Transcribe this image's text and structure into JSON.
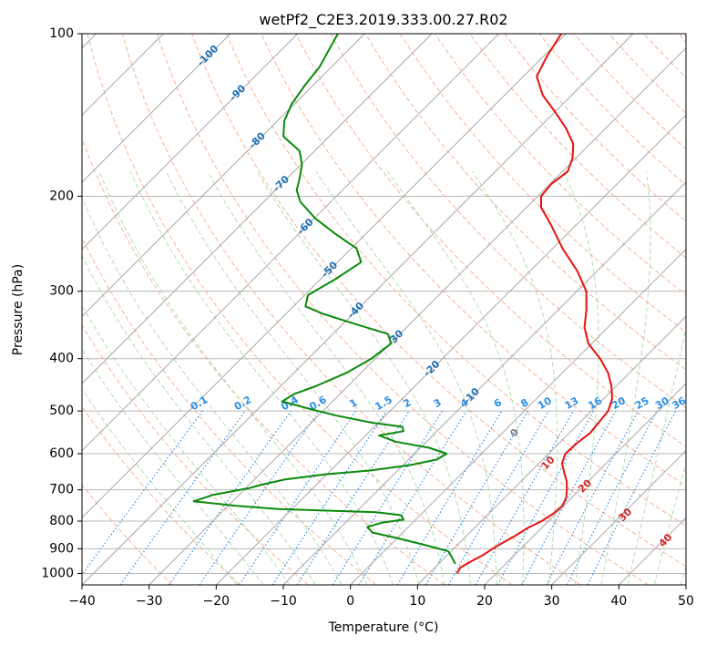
{
  "chart_data": {
    "type": "line",
    "subtype": "skew-T log-P diagram",
    "title": "wetPf2_C2E3.2019.333.00.27.R02",
    "xlabel": "Temperature (°C)",
    "ylabel": "Pressure (hPa)",
    "xlim": [
      -40,
      50
    ],
    "ylim": [
      1050,
      100
    ],
    "y_scale": "log",
    "x_ticks": [
      -40,
      -30,
      -20,
      -10,
      0,
      10,
      20,
      30,
      40,
      50
    ],
    "y_ticks": [
      100,
      200,
      300,
      400,
      500,
      600,
      700,
      800,
      900,
      1000
    ],
    "grid": true,
    "colors": {
      "temperature": "#e8120c",
      "dewpoint": "#0a8a0a",
      "isotherm_label": "#1f6fb5",
      "mixing_ratio_label": "#2b8fe8",
      "moist_adiabat_label": "#d62728",
      "zero_label": "#7f7f7f",
      "dry_adiabat": "#f4a582",
      "moist_adiabat": "#a6d9a6",
      "mixing_ratio_line": "#2b8fe8",
      "isotherm_line": "#a8a8a8",
      "gridline": "#b8b8b8"
    },
    "series": [
      {
        "key": "temperature",
        "points": [
          [
            1000,
            14.2
          ],
          [
            975,
            13.8
          ],
          [
            950,
            14.5
          ],
          [
            925,
            15.3
          ],
          [
            900,
            15.8
          ],
          [
            875,
            16.5
          ],
          [
            850,
            17.3
          ],
          [
            825,
            17.9
          ],
          [
            800,
            19.0
          ],
          [
            775,
            19.6
          ],
          [
            750,
            19.8
          ],
          [
            725,
            19.2
          ],
          [
            700,
            18.1
          ],
          [
            675,
            16.8
          ],
          [
            650,
            15.1
          ],
          [
            625,
            13.4
          ],
          [
            600,
            12.5
          ],
          [
            575,
            12.6
          ],
          [
            550,
            13.1
          ],
          [
            500,
            12.5
          ],
          [
            475,
            11.3
          ],
          [
            450,
            9.3
          ],
          [
            425,
            6.8
          ],
          [
            400,
            3.5
          ],
          [
            375,
            -0.5
          ],
          [
            350,
            -3.5
          ],
          [
            325,
            -5.8
          ],
          [
            300,
            -8.6
          ],
          [
            275,
            -13.0
          ],
          [
            250,
            -18.5
          ],
          [
            225,
            -24.0
          ],
          [
            210,
            -27.8
          ],
          [
            200,
            -29.5
          ],
          [
            190,
            -29.8
          ],
          [
            180,
            -29.2
          ],
          [
            170,
            -30.5
          ],
          [
            160,
            -32.5
          ],
          [
            150,
            -35.8
          ],
          [
            140,
            -39.8
          ],
          [
            130,
            -44.3
          ],
          [
            120,
            -48.0
          ],
          [
            110,
            -49.5
          ],
          [
            100,
            -50.7
          ]
        ]
      },
      {
        "key": "dewpoint",
        "points": [
          [
            960,
            12.5
          ],
          [
            930,
            10.8
          ],
          [
            910,
            9.6
          ],
          [
            890,
            6.0
          ],
          [
            860,
            0.0
          ],
          [
            840,
            -4.5
          ],
          [
            820,
            -6.1
          ],
          [
            805,
            -4.5
          ],
          [
            795,
            -1.8
          ],
          [
            780,
            -2.8
          ],
          [
            770,
            -7.0
          ],
          [
            760,
            -22.0
          ],
          [
            750,
            -28.5
          ],
          [
            735,
            -35.8
          ],
          [
            715,
            -33.8
          ],
          [
            695,
            -29.5
          ],
          [
            685,
            -28.2
          ],
          [
            670,
            -25.5
          ],
          [
            655,
            -20.2
          ],
          [
            645,
            -14.3
          ],
          [
            630,
            -9.0
          ],
          [
            615,
            -5.8
          ],
          [
            600,
            -5.2
          ],
          [
            585,
            -8.7
          ],
          [
            570,
            -14.6
          ],
          [
            555,
            -18.0
          ],
          [
            545,
            -15.0
          ],
          [
            535,
            -15.8
          ],
          [
            525,
            -21.2
          ],
          [
            510,
            -27.3
          ],
          [
            495,
            -32.5
          ],
          [
            480,
            -37.5
          ],
          [
            465,
            -36.8
          ],
          [
            450,
            -34.8
          ],
          [
            425,
            -32.2
          ],
          [
            400,
            -30.6
          ],
          [
            375,
            -29.9
          ],
          [
            360,
            -31.8
          ],
          [
            345,
            -38.2
          ],
          [
            330,
            -44.6
          ],
          [
            320,
            -48.2
          ],
          [
            305,
            -49.5
          ],
          [
            285,
            -47.8
          ],
          [
            265,
            -46.5
          ],
          [
            250,
            -49.2
          ],
          [
            235,
            -54.5
          ],
          [
            220,
            -59.8
          ],
          [
            205,
            -64.5
          ],
          [
            195,
            -66.8
          ],
          [
            185,
            -68.2
          ],
          [
            175,
            -69.8
          ],
          [
            165,
            -72.2
          ],
          [
            155,
            -76.8
          ],
          [
            145,
            -79.0
          ],
          [
            135,
            -80.4
          ],
          [
            125,
            -81.2
          ],
          [
            115,
            -81.8
          ],
          [
            108,
            -82.8
          ],
          [
            100,
            -84.0
          ]
        ]
      }
    ],
    "isotherm_labels": [
      {
        "text": "-100",
        "p": 110
      },
      {
        "text": "-90",
        "p": 129
      },
      {
        "text": "-80",
        "p": 158
      },
      {
        "text": "-70",
        "p": 190
      },
      {
        "text": "-60",
        "p": 228
      },
      {
        "text": "-50",
        "p": 274
      },
      {
        "text": "-40",
        "p": 326
      },
      {
        "text": "-30",
        "p": 367
      },
      {
        "text": "-20",
        "p": 418
      },
      {
        "text": "-10",
        "p": 470
      }
    ],
    "mixing_ratio_labels": [
      {
        "text": "0.1",
        "t": -22.5
      },
      {
        "text": "0.2",
        "t": -16.0
      },
      {
        "text": "0.4",
        "t": -9.0
      },
      {
        "text": "0.6",
        "t": -4.8
      },
      {
        "text": "1",
        "t": 0.5
      },
      {
        "text": "1.5",
        "t": 5.0
      },
      {
        "text": "2",
        "t": 8.5
      },
      {
        "text": "3",
        "t": 13.0
      },
      {
        "text": "4",
        "t": 17.0
      },
      {
        "text": "6",
        "t": 22.0
      },
      {
        "text": "8",
        "t": 26.0
      },
      {
        "text": "10",
        "t": 29.0
      },
      {
        "text": "13",
        "t": 33.0
      },
      {
        "text": "16",
        "t": 36.5
      },
      {
        "text": "20",
        "t": 40.0
      },
      {
        "text": "25",
        "t": 43.5
      },
      {
        "text": "30",
        "t": 46.5
      },
      {
        "text": "36",
        "t": 49.0
      }
    ],
    "moist_adiabat_labels": [
      {
        "text": "0",
        "t": 24.5,
        "p": 550
      },
      {
        "text": "10",
        "t": 29.5,
        "p": 625
      },
      {
        "text": "20",
        "t": 35.0,
        "p": 690
      },
      {
        "text": "30",
        "t": 41.0,
        "p": 780
      },
      {
        "text": "40",
        "t": 47.0,
        "p": 870
      }
    ]
  }
}
